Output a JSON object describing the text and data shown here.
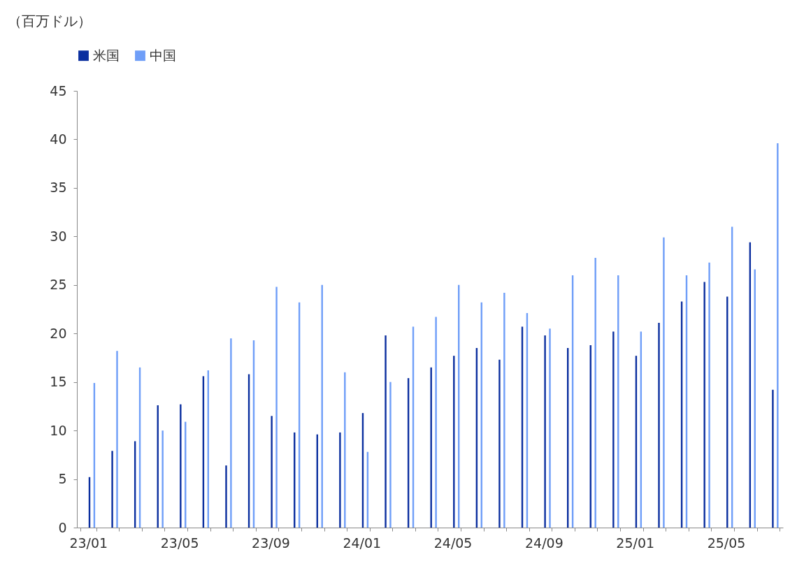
{
  "chart_data": {
    "type": "bar",
    "ylabel": "（百万ドル）",
    "categories": [
      "23/01",
      null,
      null,
      null,
      "23/05",
      null,
      null,
      null,
      "23/09",
      null,
      null,
      null,
      "24/01",
      null,
      null,
      null,
      "24/05",
      null,
      null,
      null,
      "24/09",
      null,
      null,
      null,
      "25/01",
      null,
      null,
      null,
      "25/05",
      null,
      null
    ],
    "series": [
      {
        "name": "米国",
        "color": "#0b2f9f",
        "values": [
          5.2,
          7.9,
          8.9,
          12.6,
          12.7,
          15.6,
          6.4,
          15.8,
          11.5,
          9.8,
          9.6,
          9.8,
          11.8,
          19.8,
          15.4,
          16.5,
          17.7,
          18.5,
          17.3,
          20.7,
          19.8,
          18.5,
          18.8,
          20.2,
          17.7,
          21.1,
          23.3,
          25.3,
          23.8,
          29.4,
          14.2
        ]
      },
      {
        "name": "中国",
        "color": "#6f9ef8",
        "values": [
          14.9,
          18.2,
          16.5,
          10.0,
          10.9,
          16.2,
          19.5,
          19.3,
          24.8,
          23.2,
          25.0,
          16.0,
          7.8,
          15.0,
          20.7,
          21.7,
          25.0,
          23.2,
          24.2,
          22.1,
          20.5,
          26.0,
          27.8,
          26.0,
          20.2,
          29.9,
          26.0,
          27.3,
          31.0,
          26.6,
          39.6
        ]
      }
    ],
    "ylim": [
      0,
      45
    ],
    "yticks": [
      0,
      5,
      10,
      15,
      20,
      25,
      30,
      35,
      40,
      45
    ],
    "grid": false,
    "legend": "top"
  }
}
